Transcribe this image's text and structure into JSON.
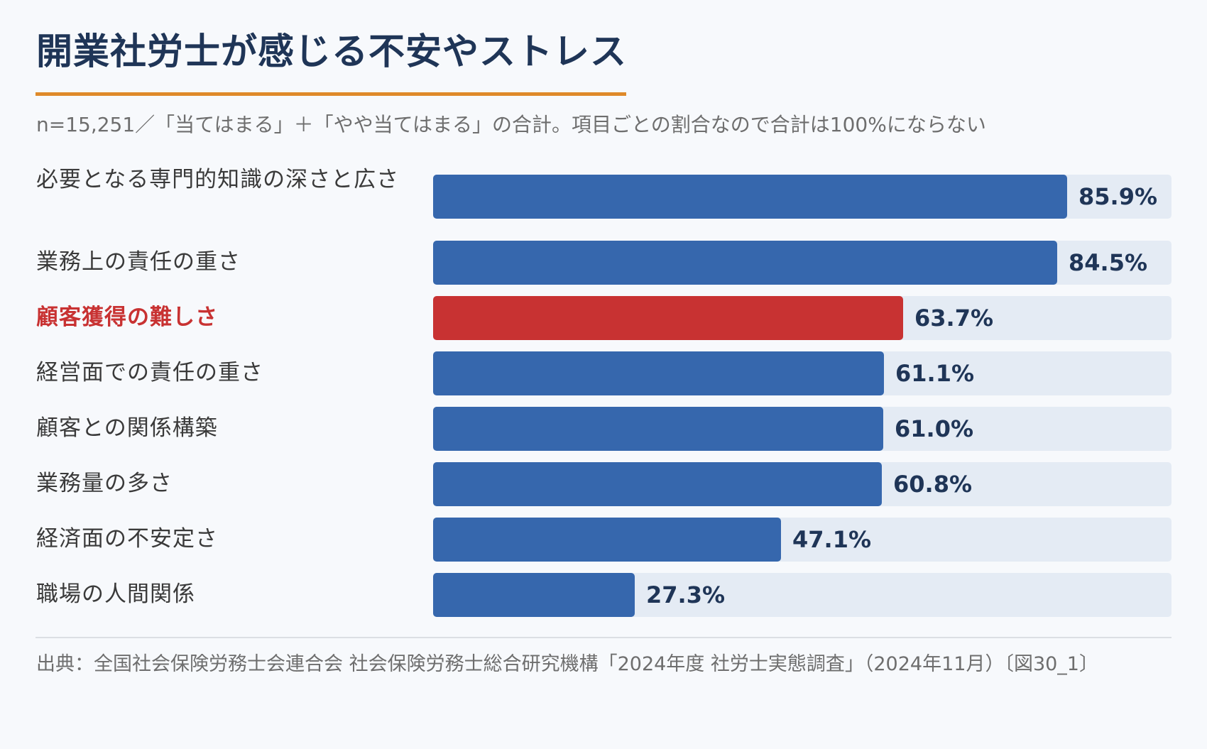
{
  "title": "開業社労士が感じる不安やストレス",
  "subtitle": "n=15,251／「当てはまる」＋「やや当てはまる」の合計。項目ごとの割合なので合計は100%にならない",
  "source": "出典：全国社会保険労務士会連合会 社会保険労務士総合研究機構「2024年度 社労士実態調査」（2024年11月）〔図30_1〕",
  "colors": {
    "bar": "#3667ad",
    "highlight_bar": "#c83232",
    "track": "#e4ebf4",
    "title": "#1f3557",
    "accent_underline": "#df8a2a",
    "highlight_text": "#c83232"
  },
  "chart_data": {
    "type": "bar",
    "orientation": "horizontal",
    "title": "開業社労士が感じる不安やストレス",
    "xlim": [
      0,
      100
    ],
    "grid": false,
    "legend": "none",
    "categories": [
      "必要となる専門的知識の深さと広さ",
      "業務上の責任の重さ",
      "顧客獲得の難しさ",
      "経営面での責任の重さ",
      "顧客との関係構築",
      "業務量の多さ",
      "経済面の不安定さ",
      "職場の人間関係"
    ],
    "values": [
      85.9,
      84.5,
      63.7,
      61.1,
      61.0,
      60.8,
      47.1,
      27.3
    ],
    "value_labels": [
      "85.9%",
      "84.5%",
      "63.7%",
      "61.1%",
      "61.0%",
      "60.8%",
      "47.1%",
      "27.3%"
    ],
    "highlighted": [
      "顧客獲得の難しさ"
    ]
  }
}
